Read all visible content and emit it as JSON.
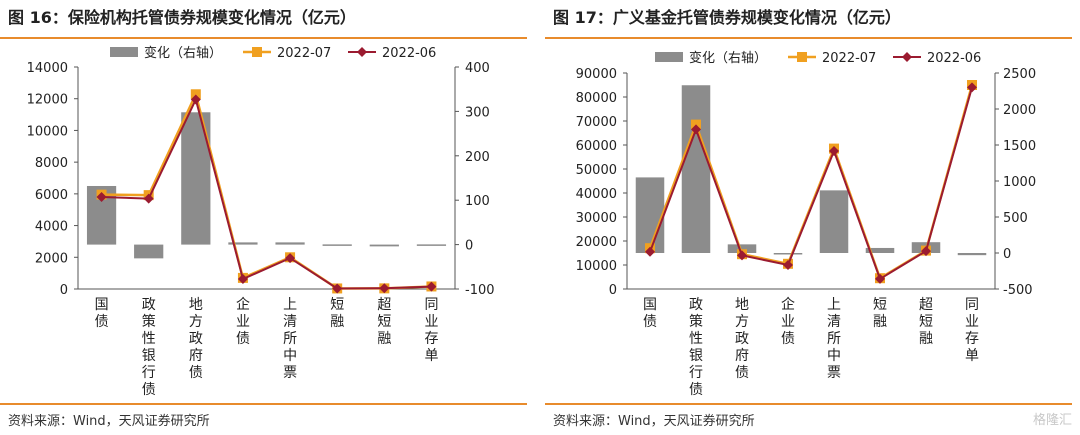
{
  "figures": [
    {
      "title": "图 16：保险机构托管债券规模变化情况（亿元）",
      "source": "资料来源：Wind，天风证券研究所",
      "chart_data": {
        "type": "bar+line",
        "categories": [
          "国债",
          "政策性银行债",
          "地方政府债",
          "企业债",
          "上清所中票",
          "短融",
          "超短融",
          "同业存单"
        ],
        "legend": [
          "变化（右轴）",
          "2022-07",
          "2022-06"
        ],
        "left_axis": {
          "min": 0,
          "max": 14000,
          "ticks": [
            0,
            2000,
            4000,
            6000,
            8000,
            10000,
            12000,
            14000
          ]
        },
        "right_axis": {
          "min": -100,
          "max": 400,
          "ticks": [
            -100,
            0,
            100,
            200,
            300,
            400
          ]
        },
        "series": [
          {
            "name": "变化（右轴）",
            "axis": "right",
            "kind": "bar",
            "color": "#8c8c8c",
            "values": [
              132,
              -31,
              298,
              5,
              5,
              0.5,
              -4,
              0.5
            ]
          },
          {
            "name": "2022-07",
            "axis": "left",
            "kind": "line",
            "color": "#f0a020",
            "values": [
              5950,
              5920,
              12280,
              700,
              2000,
              35,
              40,
              160
            ]
          },
          {
            "name": "2022-06",
            "axis": "left",
            "kind": "line",
            "color": "#9b1b30",
            "values": [
              5800,
              5700,
              11950,
              630,
              1950,
              30,
              45,
              150
            ]
          }
        ],
        "grid": false,
        "legend_position": "top-center"
      }
    },
    {
      "title": "图 17：广义基金托管债券规模变化情况（亿元）",
      "source": "资料来源：Wind，天风证券研究所",
      "watermark": "格隆汇",
      "chart_data": {
        "type": "bar+line",
        "categories": [
          "国债",
          "政策性银行债",
          "地方政府债",
          "企业债",
          "上清所中票",
          "短融",
          "超短融",
          "同业存单"
        ],
        "legend": [
          "变化（右轴）",
          "2022-07",
          "2022-06"
        ],
        "left_axis": {
          "min": 0,
          "max": 90000,
          "ticks": [
            0,
            10000,
            20000,
            30000,
            40000,
            50000,
            60000,
            70000,
            80000,
            90000
          ]
        },
        "right_axis": {
          "min": -500,
          "max": 2500,
          "ticks": [
            -500,
            0,
            500,
            1000,
            1500,
            2000,
            2500
          ]
        },
        "series": [
          {
            "name": "变化（右轴）",
            "axis": "right",
            "kind": "bar",
            "color": "#8c8c8c",
            "values": [
              1050,
              2330,
              120,
              -10,
              870,
              70,
              150,
              -30
            ]
          },
          {
            "name": "2022-07",
            "axis": "left",
            "kind": "line",
            "color": "#f0a020",
            "values": [
              17000,
              68500,
              14500,
              10500,
              58500,
              4500,
              16000,
              85000
            ]
          },
          {
            "name": "2022-06",
            "axis": "left",
            "kind": "line",
            "color": "#9b1b30",
            "values": [
              15500,
              66500,
              14000,
              10000,
              57500,
              4200,
              15800,
              84000
            ]
          }
        ],
        "grid": false,
        "legend_position": "top-center"
      }
    }
  ]
}
